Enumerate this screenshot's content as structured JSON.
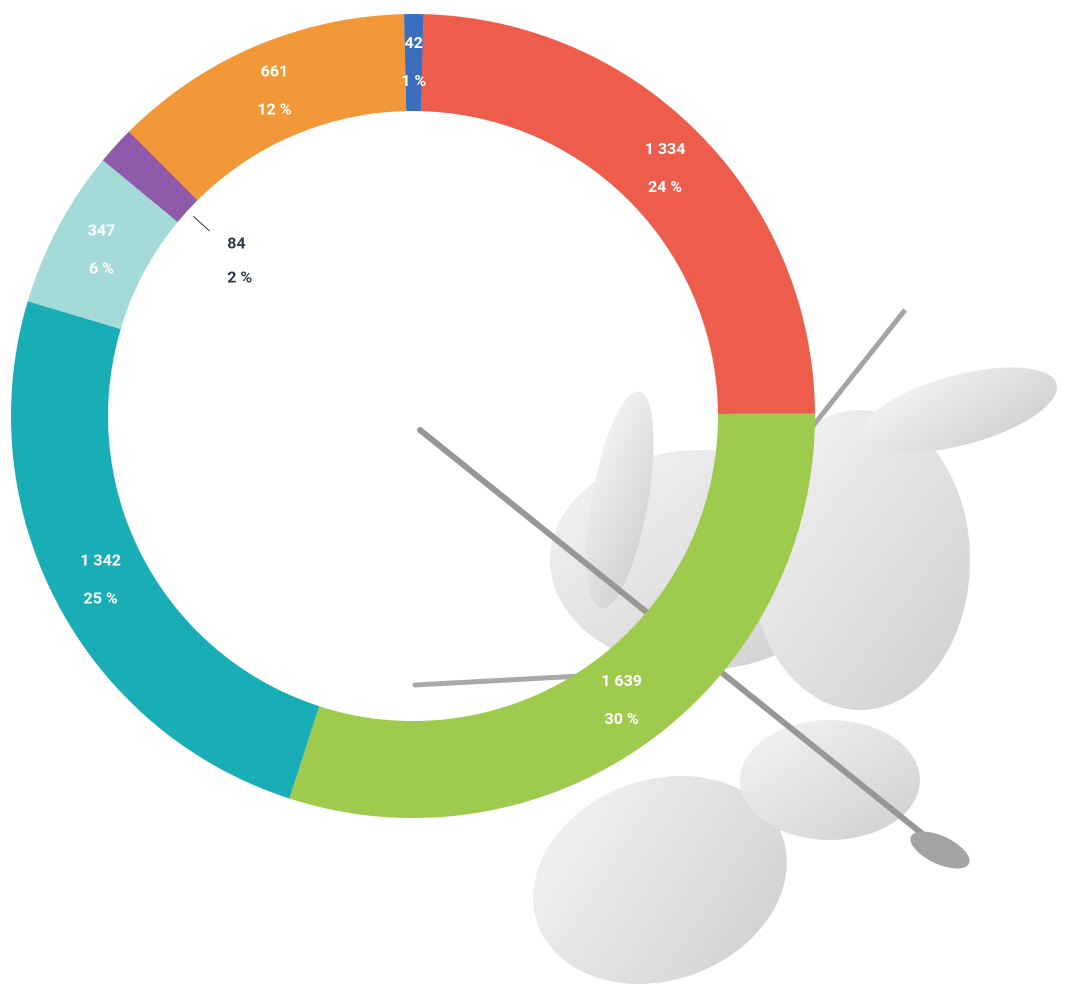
{
  "chart_data": {
    "type": "donut",
    "values": [
      1334,
      1639,
      1342,
      347,
      84,
      661,
      42
    ],
    "value_labels": [
      "1 334",
      "1 639",
      "1 342",
      "347",
      "84",
      "661",
      "42"
    ],
    "percent_labels": [
      "24 %",
      "30 %",
      "25 %",
      "6 %",
      "2 %",
      "12 %",
      "1 %"
    ],
    "colors": [
      "#ee5c4b",
      "#9ecb4e",
      "#19aeb6",
      "#a4dbd9",
      "#8e5aa9",
      "#f39839",
      "#3b6fbd"
    ]
  }
}
